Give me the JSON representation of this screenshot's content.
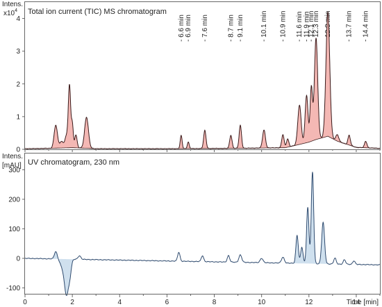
{
  "chart_data": [
    {
      "type": "area",
      "title": "Total ion current (TIC) MS chromatogram",
      "ylabel_line1": "Intens.",
      "ylabel_prefix": "x10",
      "ylabel_exp": "4",
      "ylim": [
        0,
        4.5
      ],
      "yticks": [
        0,
        1,
        2,
        3,
        4
      ],
      "xlim": [
        0,
        15
      ],
      "baseline_points": [
        [
          0,
          0.02
        ],
        [
          1.0,
          0.03
        ],
        [
          2.0,
          0.05
        ],
        [
          3.0,
          0.02
        ],
        [
          6.0,
          0.02
        ],
        [
          9.0,
          0.03
        ],
        [
          11.0,
          0.05
        ],
        [
          11.6,
          0.15
        ],
        [
          12.0,
          0.22
        ],
        [
          12.3,
          0.3
        ],
        [
          12.8,
          0.4
        ],
        [
          13.2,
          0.25
        ],
        [
          14.0,
          0.06
        ],
        [
          15.0,
          0.03
        ]
      ],
      "peaks": [
        {
          "rt": 1.3,
          "height": 0.7,
          "width": 0.07
        },
        {
          "rt": 1.55,
          "height": 0.2,
          "width": 0.08
        },
        {
          "rt": 1.75,
          "height": 0.35,
          "width": 0.06
        },
        {
          "rt": 1.88,
          "height": 1.9,
          "width": 0.05
        },
        {
          "rt": 2.0,
          "height": 0.7,
          "width": 0.04
        },
        {
          "rt": 2.15,
          "height": 0.4,
          "width": 0.05
        },
        {
          "rt": 2.6,
          "height": 0.95,
          "width": 0.08
        },
        {
          "rt": 6.6,
          "height": 0.4,
          "width": 0.04
        },
        {
          "rt": 6.9,
          "height": 0.2,
          "width": 0.04
        },
        {
          "rt": 7.6,
          "height": 0.55,
          "width": 0.05
        },
        {
          "rt": 8.7,
          "height": 0.4,
          "width": 0.05
        },
        {
          "rt": 9.1,
          "height": 0.7,
          "width": 0.05
        },
        {
          "rt": 10.1,
          "height": 0.55,
          "width": 0.06
        },
        {
          "rt": 10.9,
          "height": 0.4,
          "width": 0.05
        },
        {
          "rt": 11.1,
          "height": 0.25,
          "width": 0.05
        },
        {
          "rt": 11.6,
          "height": 1.2,
          "width": 0.07
        },
        {
          "rt": 11.9,
          "height": 1.45,
          "width": 0.06
        },
        {
          "rt": 12.1,
          "height": 1.65,
          "width": 0.05
        },
        {
          "rt": 12.3,
          "height": 3.1,
          "width": 0.07
        },
        {
          "rt": 12.8,
          "height": 3.8,
          "width": 0.08
        },
        {
          "rt": 13.2,
          "height": 0.2,
          "width": 0.06
        },
        {
          "rt": 13.7,
          "height": 0.3,
          "width": 0.05
        },
        {
          "rt": 14.4,
          "height": 0.2,
          "width": 0.05
        }
      ],
      "annotations": [
        {
          "rt": 6.6,
          "label": "6.6 min"
        },
        {
          "rt": 6.9,
          "label": "6.9 min"
        },
        {
          "rt": 7.6,
          "label": "7.6 min"
        },
        {
          "rt": 8.7,
          "label": "8.7 min"
        },
        {
          "rt": 9.1,
          "label": "9.1 min"
        },
        {
          "rt": 10.1,
          "label": "10.1 min"
        },
        {
          "rt": 10.9,
          "label": "10.9 min"
        },
        {
          "rt": 11.6,
          "label": "11.6 min"
        },
        {
          "rt": 11.9,
          "label": "11.9 min"
        },
        {
          "rt": 12.1,
          "label": "12.1 min"
        },
        {
          "rt": 12.3,
          "label": "12.3 min"
        },
        {
          "rt": 12.8,
          "label": "12.8 min"
        },
        {
          "rt": 13.7,
          "label": "13.7 min"
        },
        {
          "rt": 14.4,
          "label": "14.4 min"
        }
      ],
      "line_color": "#3a1a1a",
      "fill_color": "#f4b8b4"
    },
    {
      "type": "line",
      "title": "UV chromatogram, 230 nm",
      "ylabel_line1": "Intens.",
      "ylabel_line2": "[mAU]",
      "ylim": [
        -120,
        355
      ],
      "yticks": [
        -100,
        0,
        100,
        200,
        300
      ],
      "xlim": [
        0,
        15
      ],
      "xticks": [
        0,
        2,
        4,
        6,
        8,
        10,
        12,
        14
      ],
      "xlabel": "Time [min]",
      "baseline": 0,
      "drift_end": -22,
      "peaks": [
        {
          "rt": 1.3,
          "height": 25,
          "width": 0.06
        },
        {
          "rt": 1.55,
          "height": -20,
          "width": 0.08
        },
        {
          "rt": 1.75,
          "height": -120,
          "width": 0.09
        },
        {
          "rt": 1.9,
          "height": -40,
          "width": 0.06
        },
        {
          "rt": 2.3,
          "height": 12,
          "width": 0.06
        },
        {
          "rt": 6.5,
          "height": 30,
          "width": 0.05
        },
        {
          "rt": 7.5,
          "height": 20,
          "width": 0.05
        },
        {
          "rt": 8.6,
          "height": 22,
          "width": 0.05
        },
        {
          "rt": 9.1,
          "height": 25,
          "width": 0.06
        },
        {
          "rt": 10.0,
          "height": 15,
          "width": 0.06
        },
        {
          "rt": 10.9,
          "height": 20,
          "width": 0.06
        },
        {
          "rt": 11.5,
          "height": 95,
          "width": 0.05
        },
        {
          "rt": 11.7,
          "height": 55,
          "width": 0.05
        },
        {
          "rt": 11.95,
          "height": 190,
          "width": 0.05
        },
        {
          "rt": 12.15,
          "height": 310,
          "width": 0.05
        },
        {
          "rt": 12.6,
          "height": 140,
          "width": 0.06
        },
        {
          "rt": 13.1,
          "height": 20,
          "width": 0.05
        },
        {
          "rt": 13.5,
          "height": 15,
          "width": 0.05
        },
        {
          "rt": 13.9,
          "height": 12,
          "width": 0.05
        }
      ],
      "shade_segments": [
        [
          1.0,
          2.1
        ],
        [
          11.3,
          12.9
        ]
      ],
      "line_color": "#2e4a6e",
      "fill_color": "#cfe0ee"
    }
  ]
}
